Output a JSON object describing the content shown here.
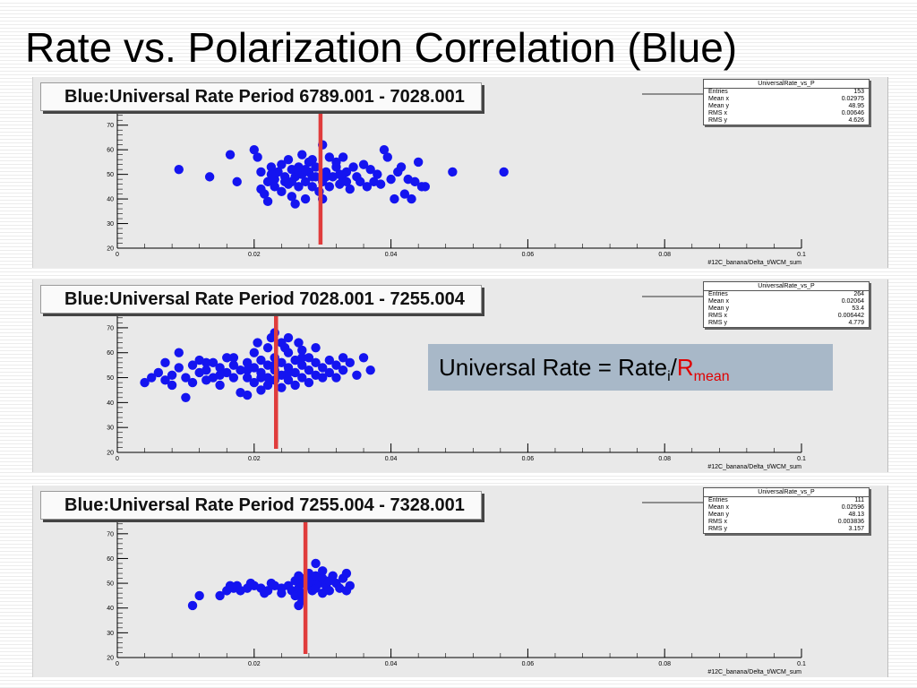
{
  "slide": {
    "title": "Rate vs. Polarization Correlation (Blue)",
    "equation": {
      "lhs": "Universal Rate = Rate",
      "sub_i": "i",
      "slash": "/",
      "r": "R",
      "sub_mean": "mean"
    }
  },
  "colors": {
    "points": "#1414f0",
    "marker_line": "#e03c3c",
    "panel_bg": "#e9e9e9",
    "equation_bg": "#a8b8c8"
  },
  "chart_data": [
    {
      "type": "scatter",
      "title": "Blue:Universal Rate Period 6789.001 - 7028.001",
      "xlabel": "#12C_banana/Delta_t/WCM_sum",
      "ylabel": "",
      "xlim": [
        0,
        0.1
      ],
      "ylim": [
        20,
        75
      ],
      "x_ticks": [
        "0",
        "0.02",
        "0.04",
        "0.06",
        "0.08",
        "0.1"
      ],
      "y_ticks": [
        "20",
        "30",
        "40",
        "50",
        "60",
        "70"
      ],
      "marker_x": 0.0297,
      "stats": {
        "name": "UniversalRate_vs_P",
        "rows": [
          [
            "Entries",
            "153"
          ],
          [
            "Mean x",
            "0.02975"
          ],
          [
            "Mean y",
            "48.95"
          ],
          [
            "RMS x",
            "0.00646"
          ],
          [
            "RMS y",
            "4.626"
          ]
        ]
      },
      "points": [
        [
          0.009,
          52
        ],
        [
          0.0135,
          49
        ],
        [
          0.0165,
          58
        ],
        [
          0.0175,
          47
        ],
        [
          0.02,
          60
        ],
        [
          0.0205,
          57
        ],
        [
          0.021,
          51
        ],
        [
          0.021,
          44
        ],
        [
          0.0215,
          42
        ],
        [
          0.022,
          39
        ],
        [
          0.022,
          47
        ],
        [
          0.0225,
          53
        ],
        [
          0.023,
          48
        ],
        [
          0.023,
          45
        ],
        [
          0.0235,
          51
        ],
        [
          0.024,
          54
        ],
        [
          0.024,
          43
        ],
        [
          0.0245,
          49
        ],
        [
          0.025,
          56
        ],
        [
          0.025,
          46
        ],
        [
          0.0255,
          52
        ],
        [
          0.0255,
          41
        ],
        [
          0.026,
          49
        ],
        [
          0.026,
          38
        ],
        [
          0.0265,
          53
        ],
        [
          0.0265,
          45
        ],
        [
          0.027,
          58
        ],
        [
          0.027,
          50
        ],
        [
          0.0275,
          47
        ],
        [
          0.0275,
          40
        ],
        [
          0.028,
          55
        ],
        [
          0.028,
          51
        ],
        [
          0.0285,
          45
        ],
        [
          0.0285,
          56
        ],
        [
          0.029,
          49
        ],
        [
          0.029,
          53
        ],
        [
          0.0295,
          43
        ],
        [
          0.03,
          62
        ],
        [
          0.03,
          47
        ],
        [
          0.03,
          40
        ],
        [
          0.0305,
          51
        ],
        [
          0.031,
          57
        ],
        [
          0.031,
          45
        ],
        [
          0.0315,
          49
        ],
        [
          0.032,
          53
        ],
        [
          0.032,
          55
        ],
        [
          0.0325,
          46
        ],
        [
          0.033,
          57
        ],
        [
          0.033,
          48
        ],
        [
          0.0335,
          51
        ],
        [
          0.034,
          44
        ],
        [
          0.0345,
          53
        ],
        [
          0.035,
          49
        ],
        [
          0.0355,
          47
        ],
        [
          0.036,
          54
        ],
        [
          0.0365,
          45
        ],
        [
          0.037,
          52
        ],
        [
          0.0375,
          47
        ],
        [
          0.038,
          50
        ],
        [
          0.0385,
          46
        ],
        [
          0.039,
          60
        ],
        [
          0.0395,
          57
        ],
        [
          0.04,
          48
        ],
        [
          0.0405,
          40
        ],
        [
          0.041,
          51
        ],
        [
          0.0415,
          53
        ],
        [
          0.042,
          42
        ],
        [
          0.0425,
          48
        ],
        [
          0.043,
          40
        ],
        [
          0.0435,
          47
        ],
        [
          0.044,
          55
        ],
        [
          0.0445,
          45
        ],
        [
          0.045,
          45
        ],
        [
          0.049,
          51
        ],
        [
          0.0565,
          51
        ],
        [
          0.0245,
          47
        ],
        [
          0.0265,
          51
        ],
        [
          0.0285,
          49
        ],
        [
          0.0255,
          47
        ],
        [
          0.0275,
          52
        ],
        [
          0.0225,
          50
        ],
        [
          0.0325,
          50
        ],
        [
          0.0305,
          49
        ],
        [
          0.0335,
          47
        ]
      ]
    },
    {
      "type": "scatter",
      "title": "Blue:Universal Rate Period 7028.001 - 7255.004",
      "xlabel": "#12C_banana/Delta_t/WCM_sum",
      "ylabel": "",
      "xlim": [
        0,
        0.1
      ],
      "ylim": [
        20,
        75
      ],
      "x_ticks": [
        "0",
        "0.02",
        "0.04",
        "0.06",
        "0.08",
        "0.1"
      ],
      "y_ticks": [
        "20",
        "30",
        "40",
        "50",
        "60",
        "70"
      ],
      "marker_x": 0.0232,
      "stats": {
        "name": "UniversalRate_vs_P",
        "rows": [
          [
            "Entries",
            "264"
          ],
          [
            "Mean x",
            "0.02064"
          ],
          [
            "Mean y",
            "53.4"
          ],
          [
            "RMS x",
            "0.006442"
          ],
          [
            "RMS y",
            "4.779"
          ]
        ]
      },
      "points": [
        [
          0.004,
          48
        ],
        [
          0.005,
          50
        ],
        [
          0.006,
          52
        ],
        [
          0.007,
          49
        ],
        [
          0.007,
          56
        ],
        [
          0.008,
          51
        ],
        [
          0.008,
          47
        ],
        [
          0.009,
          54
        ],
        [
          0.009,
          60
        ],
        [
          0.01,
          50
        ],
        [
          0.01,
          42
        ],
        [
          0.011,
          55
        ],
        [
          0.011,
          48
        ],
        [
          0.012,
          52
        ],
        [
          0.012,
          57
        ],
        [
          0.013,
          49
        ],
        [
          0.013,
          53
        ],
        [
          0.014,
          50
        ],
        [
          0.014,
          56
        ],
        [
          0.015,
          54
        ],
        [
          0.015,
          47
        ],
        [
          0.016,
          52
        ],
        [
          0.016,
          58
        ],
        [
          0.017,
          50
        ],
        [
          0.017,
          55
        ],
        [
          0.018,
          53
        ],
        [
          0.018,
          44
        ],
        [
          0.019,
          56
        ],
        [
          0.019,
          50
        ],
        [
          0.019,
          43
        ],
        [
          0.02,
          54
        ],
        [
          0.02,
          60
        ],
        [
          0.02,
          48
        ],
        [
          0.021,
          52
        ],
        [
          0.021,
          57
        ],
        [
          0.021,
          45
        ],
        [
          0.022,
          55
        ],
        [
          0.022,
          62
        ],
        [
          0.022,
          50
        ],
        [
          0.022,
          47
        ],
        [
          0.023,
          68
        ],
        [
          0.023,
          58
        ],
        [
          0.023,
          53
        ],
        [
          0.023,
          49
        ],
        [
          0.024,
          64
        ],
        [
          0.024,
          56
        ],
        [
          0.024,
          51
        ],
        [
          0.024,
          46
        ],
        [
          0.025,
          60
        ],
        [
          0.025,
          54
        ],
        [
          0.025,
          49
        ],
        [
          0.025,
          66
        ],
        [
          0.026,
          57
        ],
        [
          0.026,
          52
        ],
        [
          0.026,
          47
        ],
        [
          0.027,
          55
        ],
        [
          0.027,
          61
        ],
        [
          0.027,
          50
        ],
        [
          0.028,
          58
        ],
        [
          0.028,
          53
        ],
        [
          0.028,
          48
        ],
        [
          0.029,
          56
        ],
        [
          0.029,
          51
        ],
        [
          0.029,
          62
        ],
        [
          0.03,
          54
        ],
        [
          0.03,
          50
        ],
        [
          0.031,
          57
        ],
        [
          0.031,
          52
        ],
        [
          0.032,
          55
        ],
        [
          0.032,
          50
        ],
        [
          0.033,
          58
        ],
        [
          0.033,
          53
        ],
        [
          0.034,
          56
        ],
        [
          0.035,
          51
        ],
        [
          0.036,
          58
        ],
        [
          0.037,
          53
        ],
        [
          0.013,
          56
        ],
        [
          0.015,
          51
        ],
        [
          0.017,
          58
        ],
        [
          0.019,
          53
        ],
        [
          0.021,
          50
        ],
        [
          0.023,
          55
        ],
        [
          0.025,
          52
        ],
        [
          0.027,
          58
        ],
        [
          0.0225,
          66
        ],
        [
          0.0245,
          62
        ],
        [
          0.0265,
          64
        ],
        [
          0.0205,
          64
        ]
      ]
    },
    {
      "type": "scatter",
      "title": "Blue:Universal Rate Period 7255.004 - 7328.001",
      "xlabel": "#12C_banana/Delta_t/WCM_sum",
      "ylabel": "",
      "xlim": [
        0,
        0.1
      ],
      "ylim": [
        20,
        75
      ],
      "x_ticks": [
        "0",
        "0.02",
        "0.04",
        "0.06",
        "0.08",
        "0.1"
      ],
      "y_ticks": [
        "20",
        "30",
        "40",
        "50",
        "60",
        "70"
      ],
      "marker_x": 0.0275,
      "stats": {
        "name": "UniversalRate_vs_P",
        "rows": [
          [
            "Entries",
            "111"
          ],
          [
            "Mean x",
            "0.02596"
          ],
          [
            "Mean y",
            "48.13"
          ],
          [
            "RMS x",
            "0.003836"
          ],
          [
            "RMS y",
            "3.157"
          ]
        ]
      },
      "points": [
        [
          0.011,
          41
        ],
        [
          0.012,
          45
        ],
        [
          0.015,
          45
        ],
        [
          0.016,
          47
        ],
        [
          0.0165,
          49
        ],
        [
          0.017,
          48
        ],
        [
          0.0175,
          49
        ],
        [
          0.018,
          47
        ],
        [
          0.019,
          48
        ],
        [
          0.0195,
          50
        ],
        [
          0.02,
          49
        ],
        [
          0.021,
          48
        ],
        [
          0.022,
          47
        ],
        [
          0.0225,
          50
        ],
        [
          0.023,
          49
        ],
        [
          0.024,
          48
        ],
        [
          0.024,
          46
        ],
        [
          0.025,
          49
        ],
        [
          0.0255,
          47
        ],
        [
          0.026,
          51
        ],
        [
          0.026,
          45
        ],
        [
          0.0265,
          53
        ],
        [
          0.0265,
          48
        ],
        [
          0.027,
          50
        ],
        [
          0.027,
          46
        ],
        [
          0.0275,
          52
        ],
        [
          0.028,
          49
        ],
        [
          0.028,
          54
        ],
        [
          0.0285,
          47
        ],
        [
          0.0285,
          51
        ],
        [
          0.029,
          58
        ],
        [
          0.029,
          53
        ],
        [
          0.029,
          48
        ],
        [
          0.0295,
          50
        ],
        [
          0.03,
          52
        ],
        [
          0.03,
          46
        ],
        [
          0.0305,
          49
        ],
        [
          0.031,
          51
        ],
        [
          0.031,
          47
        ],
        [
          0.032,
          50
        ],
        [
          0.0325,
          48
        ],
        [
          0.033,
          52
        ],
        [
          0.0335,
          54
        ],
        [
          0.034,
          49
        ],
        [
          0.027,
          43
        ],
        [
          0.0265,
          41
        ],
        [
          0.03,
          55
        ],
        [
          0.0315,
          53
        ],
        [
          0.0335,
          47
        ],
        [
          0.0215,
          46
        ]
      ]
    }
  ]
}
